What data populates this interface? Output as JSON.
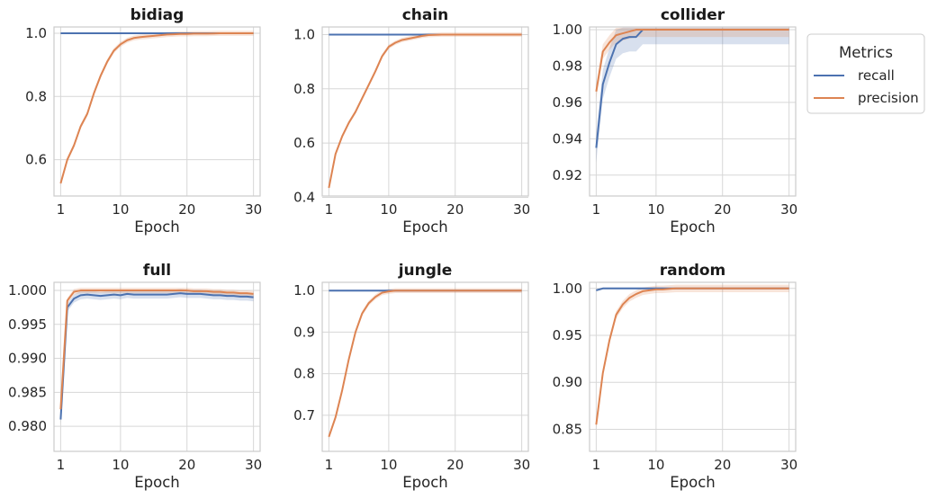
{
  "chart_data": [
    {
      "type": "line",
      "title": "bidiag",
      "xlabel": "Epoch",
      "ylabel": "",
      "xlim": [
        0,
        31
      ],
      "ylim": [
        0.485,
        1.02
      ],
      "xticks": [
        1,
        10,
        20,
        30
      ],
      "xtick_labels": [
        "1",
        "10",
        "20",
        "30"
      ],
      "yticks": [
        0.6,
        0.8,
        1.0
      ],
      "ytick_labels": [
        "0.6",
        "0.8",
        "1.0"
      ],
      "grid": true,
      "x": [
        1,
        2,
        3,
        4,
        5,
        6,
        7,
        8,
        9,
        10,
        11,
        12,
        13,
        14,
        15,
        16,
        17,
        18,
        19,
        20,
        21,
        22,
        23,
        24,
        25,
        26,
        27,
        28,
        29,
        30
      ],
      "series": [
        {
          "name": "recall",
          "color": "#4c72b0",
          "band": 0.002,
          "values": [
            1,
            1,
            1,
            1,
            1,
            1,
            1,
            1,
            1,
            1,
            1,
            1,
            1,
            1,
            1,
            1,
            1,
            1,
            1,
            1,
            1,
            1,
            1,
            1,
            1,
            1,
            1,
            1,
            1,
            1
          ]
        },
        {
          "name": "precision",
          "color": "#dd8452",
          "band": 0.008,
          "values": [
            0.525,
            0.6,
            0.645,
            0.705,
            0.745,
            0.81,
            0.865,
            0.91,
            0.945,
            0.965,
            0.978,
            0.985,
            0.988,
            0.99,
            0.992,
            0.994,
            0.996,
            0.997,
            0.998,
            0.998,
            0.999,
            0.999,
            0.999,
            0.9995,
            1,
            1,
            1,
            1,
            1,
            1
          ]
        }
      ]
    },
    {
      "type": "line",
      "title": "chain",
      "xlabel": "Epoch",
      "ylabel": "",
      "xlim": [
        0,
        31
      ],
      "ylim": [
        0.405,
        1.028
      ],
      "xticks": [
        1,
        10,
        20,
        30
      ],
      "xtick_labels": [
        "1",
        "10",
        "20",
        "30"
      ],
      "yticks": [
        0.4,
        0.6,
        0.8,
        1.0
      ],
      "ytick_labels": [
        "0.4",
        "0.6",
        "0.8",
        "1.0"
      ],
      "grid": true,
      "x": [
        1,
        2,
        3,
        4,
        5,
        6,
        7,
        8,
        9,
        10,
        11,
        12,
        13,
        14,
        15,
        16,
        17,
        18,
        19,
        20,
        21,
        22,
        23,
        24,
        25,
        26,
        27,
        28,
        29,
        30
      ],
      "series": [
        {
          "name": "recall",
          "color": "#4c72b0",
          "band": 0.002,
          "values": [
            1,
            1,
            1,
            1,
            1,
            1,
            1,
            1,
            1,
            1,
            1,
            1,
            1,
            1,
            1,
            1,
            1,
            1,
            1,
            1,
            1,
            1,
            1,
            1,
            1,
            1,
            1,
            1,
            1,
            1
          ]
        },
        {
          "name": "precision",
          "color": "#dd8452",
          "band": 0.008,
          "values": [
            0.435,
            0.56,
            0.625,
            0.675,
            0.715,
            0.765,
            0.815,
            0.865,
            0.92,
            0.955,
            0.97,
            0.98,
            0.985,
            0.99,
            0.995,
            0.998,
            0.999,
            1,
            1,
            1,
            1,
            1,
            1,
            1,
            1,
            1,
            1,
            1,
            1,
            1
          ]
        }
      ]
    },
    {
      "type": "line",
      "title": "collider",
      "xlabel": "Epoch",
      "ylabel": "",
      "xlim": [
        0,
        31
      ],
      "ylim": [
        0.9085,
        1.0015
      ],
      "xticks": [
        1,
        10,
        20,
        30
      ],
      "xtick_labels": [
        "1",
        "10",
        "20",
        "30"
      ],
      "yticks": [
        0.92,
        0.94,
        0.96,
        0.98,
        1.0
      ],
      "ytick_labels": [
        "0.92",
        "0.94",
        "0.96",
        "0.98",
        "1.00"
      ],
      "grid": true,
      "x": [
        1,
        2,
        3,
        4,
        5,
        6,
        7,
        8,
        9,
        10,
        11,
        12,
        13,
        14,
        15,
        16,
        17,
        18,
        19,
        20,
        21,
        22,
        23,
        24,
        25,
        26,
        27,
        28,
        29,
        30
      ],
      "series": [
        {
          "name": "recall",
          "color": "#4c72b0",
          "band": 0.008,
          "values": [
            0.935,
            0.97,
            0.982,
            0.992,
            0.995,
            0.996,
            0.996,
            1,
            1,
            1,
            1,
            1,
            1,
            1,
            1,
            1,
            1,
            1,
            1,
            1,
            1,
            1,
            1,
            1,
            1,
            1,
            1,
            1,
            1,
            1
          ]
        },
        {
          "name": "precision",
          "color": "#dd8452",
          "band": 0.004,
          "values": [
            0.966,
            0.988,
            0.993,
            0.997,
            0.998,
            0.999,
            1,
            1,
            1,
            1,
            1,
            1,
            1,
            1,
            1,
            1,
            1,
            1,
            1,
            1,
            1,
            1,
            1,
            1,
            1,
            1,
            1,
            1,
            1,
            1
          ]
        }
      ]
    },
    {
      "type": "line",
      "title": "full",
      "xlabel": "Epoch",
      "ylabel": "",
      "xlim": [
        0,
        31
      ],
      "ylim": [
        0.9763,
        1.0012
      ],
      "xticks": [
        1,
        10,
        20,
        30
      ],
      "xtick_labels": [
        "1",
        "10",
        "20",
        "30"
      ],
      "yticks": [
        0.98,
        0.985,
        0.99,
        0.995,
        1.0
      ],
      "ytick_labels": [
        "0.980",
        "0.985",
        "0.990",
        "0.995",
        "1.000"
      ],
      "grid": true,
      "x": [
        1,
        2,
        3,
        4,
        5,
        6,
        7,
        8,
        9,
        10,
        11,
        12,
        13,
        14,
        15,
        16,
        17,
        18,
        19,
        20,
        21,
        22,
        23,
        24,
        25,
        26,
        27,
        28,
        29,
        30
      ],
      "series": [
        {
          "name": "recall",
          "color": "#4c72b0",
          "band": 0.0006,
          "values": [
            0.981,
            0.9975,
            0.9988,
            0.9993,
            0.9994,
            0.9993,
            0.9992,
            0.9993,
            0.9994,
            0.9993,
            0.9995,
            0.9994,
            0.9994,
            0.9994,
            0.9994,
            0.9994,
            0.9994,
            0.9995,
            0.9996,
            0.9995,
            0.9995,
            0.9995,
            0.9994,
            0.9993,
            0.9993,
            0.9992,
            0.9992,
            0.9991,
            0.9991,
            0.999
          ]
        },
        {
          "name": "precision",
          "color": "#dd8452",
          "band": 0.0004,
          "values": [
            0.9825,
            0.9985,
            0.9998,
            1,
            1,
            1,
            1,
            1,
            1,
            1,
            1,
            1,
            1,
            1,
            1,
            1,
            1,
            1,
            1,
            1,
            0.9999,
            0.9999,
            0.9999,
            0.9998,
            0.9998,
            0.9997,
            0.9997,
            0.9996,
            0.9996,
            0.9995
          ]
        }
      ]
    },
    {
      "type": "line",
      "title": "jungle",
      "xlabel": "Epoch",
      "ylabel": "",
      "xlim": [
        0,
        31
      ],
      "ylim": [
        0.613,
        1.02
      ],
      "xticks": [
        1,
        10,
        20,
        30
      ],
      "xtick_labels": [
        "1",
        "10",
        "20",
        "30"
      ],
      "yticks": [
        0.7,
        0.8,
        0.9,
        1.0
      ],
      "ytick_labels": [
        "0.7",
        "0.8",
        "0.9",
        "1.0"
      ],
      "grid": true,
      "x": [
        1,
        2,
        3,
        4,
        5,
        6,
        7,
        8,
        9,
        10,
        11,
        12,
        13,
        14,
        15,
        16,
        17,
        18,
        19,
        20,
        21,
        22,
        23,
        24,
        25,
        26,
        27,
        28,
        29,
        30
      ],
      "series": [
        {
          "name": "recall",
          "color": "#4c72b0",
          "band": 0.002,
          "values": [
            1,
            1,
            1,
            1,
            1,
            1,
            1,
            1,
            1,
            1,
            1,
            1,
            1,
            1,
            1,
            1,
            1,
            1,
            1,
            1,
            1,
            1,
            1,
            1,
            1,
            1,
            1,
            1,
            1,
            1
          ]
        },
        {
          "name": "precision",
          "color": "#dd8452",
          "band": 0.006,
          "values": [
            0.648,
            0.695,
            0.76,
            0.835,
            0.9,
            0.945,
            0.97,
            0.985,
            0.995,
            0.998,
            1,
            1,
            1,
            1,
            1,
            1,
            1,
            1,
            1,
            1,
            1,
            1,
            1,
            1,
            1,
            1,
            1,
            1,
            1,
            1
          ]
        }
      ]
    },
    {
      "type": "line",
      "title": "random",
      "xlabel": "Epoch",
      "ylabel": "",
      "xlim": [
        0,
        31
      ],
      "ylim": [
        0.8265,
        1.0065
      ],
      "xticks": [
        1,
        10,
        20,
        30
      ],
      "xtick_labels": [
        "1",
        "10",
        "20",
        "30"
      ],
      "yticks": [
        0.85,
        0.9,
        0.95,
        1.0
      ],
      "ytick_labels": [
        "0.85",
        "0.90",
        "0.95",
        "1.00"
      ],
      "grid": true,
      "x": [
        1,
        2,
        3,
        4,
        5,
        6,
        7,
        8,
        9,
        10,
        11,
        12,
        13,
        14,
        15,
        16,
        17,
        18,
        19,
        20,
        21,
        22,
        23,
        24,
        25,
        26,
        27,
        28,
        29,
        30
      ],
      "series": [
        {
          "name": "recall",
          "color": "#4c72b0",
          "band": 0.001,
          "values": [
            0.998,
            1,
            1,
            1,
            1,
            1,
            1,
            1,
            1,
            1,
            1,
            1,
            1,
            1,
            1,
            1,
            1,
            1,
            1,
            1,
            1,
            1,
            1,
            1,
            1,
            1,
            1,
            1,
            1,
            1
          ]
        },
        {
          "name": "precision",
          "color": "#dd8452",
          "band": 0.004,
          "values": [
            0.855,
            0.91,
            0.945,
            0.972,
            0.983,
            0.99,
            0.994,
            0.997,
            0.998,
            0.999,
            0.999,
            0.9995,
            1,
            1,
            1,
            1,
            1,
            1,
            1,
            1,
            1,
            1,
            1,
            1,
            1,
            1,
            1,
            1,
            1,
            1
          ]
        }
      ]
    }
  ],
  "legend": {
    "title": "Metrics",
    "placement": "right",
    "items": [
      {
        "label": "recall",
        "color": "#4c72b0"
      },
      {
        "label": "precision",
        "color": "#dd8452"
      }
    ]
  }
}
